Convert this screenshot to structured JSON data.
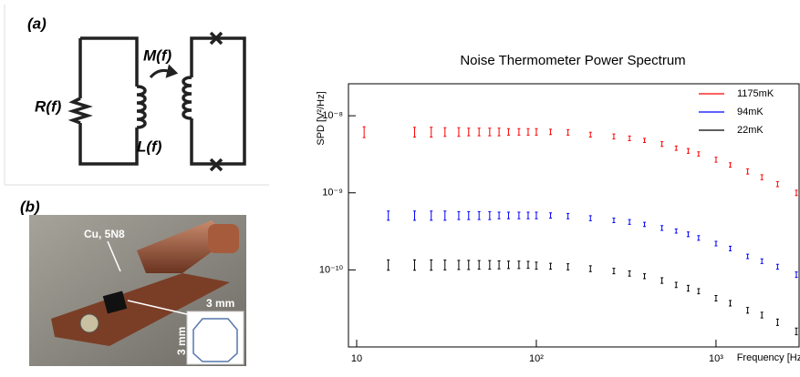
{
  "panels": {
    "a": {
      "label": "(a)",
      "resistor": "R(f)",
      "inductor": "L(f)",
      "mutual": "M(f)"
    },
    "b": {
      "label": "(b)",
      "material": "Cu, 5N8",
      "width": "3 mm",
      "height": "3 mm"
    }
  },
  "chart_data": {
    "type": "errorbar",
    "title": "Noise Thermometer Power Spectrum",
    "x_label": "Frequency [Hz]",
    "y_label": "SPD [V²/Hz]",
    "log_x": true,
    "log_y": true,
    "legend": "top-right",
    "xlim": [
      9,
      2900
    ],
    "ylim": [
      1e-11,
      2.6e-08
    ],
    "xticks": [
      10,
      {
        "value": 100,
        "label": "10²"
      },
      {
        "value": 1000,
        "label": "10³"
      }
    ],
    "yticks": [
      {
        "value": 1e-10,
        "label": "10⁻¹⁰"
      },
      {
        "value": 1e-09,
        "label": "10⁻⁹"
      },
      {
        "value": 1e-08,
        "label": "10⁻⁸"
      }
    ],
    "x": [
      11,
      15,
      21,
      26,
      31,
      37,
      42,
      48,
      55,
      62,
      70,
      80,
      90,
      100,
      120,
      150,
      200,
      270,
      330,
      400,
      500,
      600,
      700,
      800,
      1000,
      1200,
      1500,
      1800,
      2200,
      2800
    ],
    "series": [
      {
        "name": "1175mK",
        "color": "#ff0000",
        "values": [
          6.2e-09,
          null,
          6.2e-09,
          6.2e-09,
          6.2e-09,
          6.2e-09,
          6.2e-09,
          6.2e-09,
          6.2e-09,
          6.2e-09,
          6.2e-09,
          6.2e-09,
          6.2e-09,
          6.2e-09,
          6.2e-09,
          6.1e-09,
          5.7e-09,
          5.4e-09,
          5.1e-09,
          4.8e-09,
          4.3e-09,
          3.8e-09,
          3.5e-09,
          3.2e-09,
          2.7e-09,
          2.3e-09,
          1.9e-09,
          1.6e-09,
          1.3e-09,
          1e-09
        ],
        "errors": [
          1e-09,
          null,
          9e-10,
          9e-10,
          8e-10,
          8e-10,
          7e-10,
          7e-10,
          7e-10,
          7e-10,
          6e-10,
          6e-10,
          6e-10,
          6e-10,
          5e-10,
          5e-10,
          4e-10,
          4e-10,
          3.5e-10,
          3e-10,
          3e-10,
          2.5e-10,
          2.5e-10,
          2e-10,
          2e-10,
          1.5e-10,
          1.5e-10,
          1.2e-10,
          1e-10,
          8e-11
        ]
      },
      {
        "name": "94mK",
        "color": "#0000ff",
        "values": [
          null,
          5.1e-10,
          5.1e-10,
          5.1e-10,
          5.1e-10,
          5.1e-10,
          5.1e-10,
          5.1e-10,
          5.1e-10,
          5.1e-10,
          5.1e-10,
          5.1e-10,
          5.1e-10,
          5.1e-10,
          5.1e-10,
          5e-10,
          4.7e-10,
          4.4e-10,
          4.2e-10,
          3.9e-10,
          3.5e-10,
          3.2e-10,
          2.9e-10,
          2.6e-10,
          2.2e-10,
          1.9e-10,
          1.5e-10,
          1.3e-10,
          1.1e-10,
          8.7e-11
        ],
        "errors": [
          null,
          7e-11,
          7e-11,
          7e-11,
          7e-11,
          6e-11,
          6e-11,
          6e-11,
          6e-11,
          5e-11,
          5e-11,
          5e-11,
          5e-11,
          5e-11,
          4e-11,
          4e-11,
          3.5e-11,
          3e-11,
          3e-11,
          2.5e-11,
          2.5e-11,
          2e-11,
          2e-11,
          1.8e-11,
          1.5e-11,
          1.3e-11,
          1e-11,
          9e-12,
          8e-12,
          7e-12
        ]
      },
      {
        "name": "22mK",
        "color": "#000000",
        "values": [
          null,
          1.17e-10,
          1.17e-10,
          1.17e-10,
          1.17e-10,
          1.17e-10,
          1.17e-10,
          1.17e-10,
          1.17e-10,
          1.17e-10,
          1.17e-10,
          1.17e-10,
          1.17e-10,
          1.14e-10,
          1.12e-10,
          1.1e-10,
          1.04e-10,
          9.7e-11,
          9e-11,
          8.3e-11,
          7.3e-11,
          6.4e-11,
          5.8e-11,
          5.3e-11,
          4.3e-11,
          3.7e-11,
          3e-11,
          2.6e-11,
          2.1e-11,
          1.6e-11
        ],
        "errors": [
          null,
          1.8e-11,
          1.8e-11,
          1.8e-11,
          1.7e-11,
          1.6e-11,
          1.6e-11,
          1.5e-11,
          1.5e-11,
          1.4e-11,
          1.3e-11,
          1.3e-11,
          1.2e-11,
          1.2e-11,
          1e-11,
          1e-11,
          9e-12,
          8e-12,
          7e-12,
          6e-12,
          6e-12,
          5e-12,
          5e-12,
          4e-12,
          3.5e-12,
          3e-12,
          2.5e-12,
          2.2e-12,
          2e-12,
          1.6e-12
        ]
      }
    ]
  }
}
